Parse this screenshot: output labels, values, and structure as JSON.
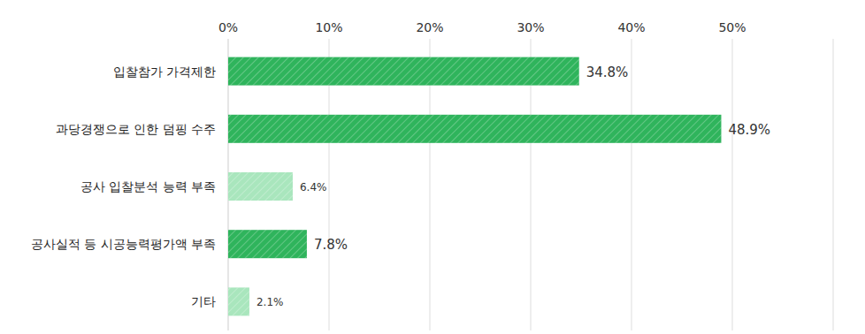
{
  "chart_data": {
    "type": "bar",
    "orientation": "horizontal",
    "categories": [
      "입찰참가 가격제한",
      "과당경쟁으로 인한 덤핑 수주",
      "공사 입찰분석 능력 부족",
      "공사실적 등 시공능력평가액 부족",
      "기타"
    ],
    "values": [
      34.8,
      48.9,
      6.4,
      7.8,
      2.1
    ],
    "value_labels": [
      "34.8%",
      "48.9%",
      "6.4%",
      "7.8%",
      "2.1%"
    ],
    "colors": [
      "#2fb45c",
      "#2fb45c",
      "#a9e6bd",
      "#2fb45c",
      "#a9e6bd"
    ],
    "xlim": [
      0,
      60
    ],
    "xticks": [
      {
        "value": 0,
        "label": "0%"
      },
      {
        "value": 10,
        "label": "10%"
      },
      {
        "value": 20,
        "label": "20%"
      },
      {
        "value": 30,
        "label": "30%"
      },
      {
        "value": 40,
        "label": "40%"
      },
      {
        "value": 50,
        "label": "50%"
      }
    ],
    "grid": true,
    "data_labels": true
  }
}
